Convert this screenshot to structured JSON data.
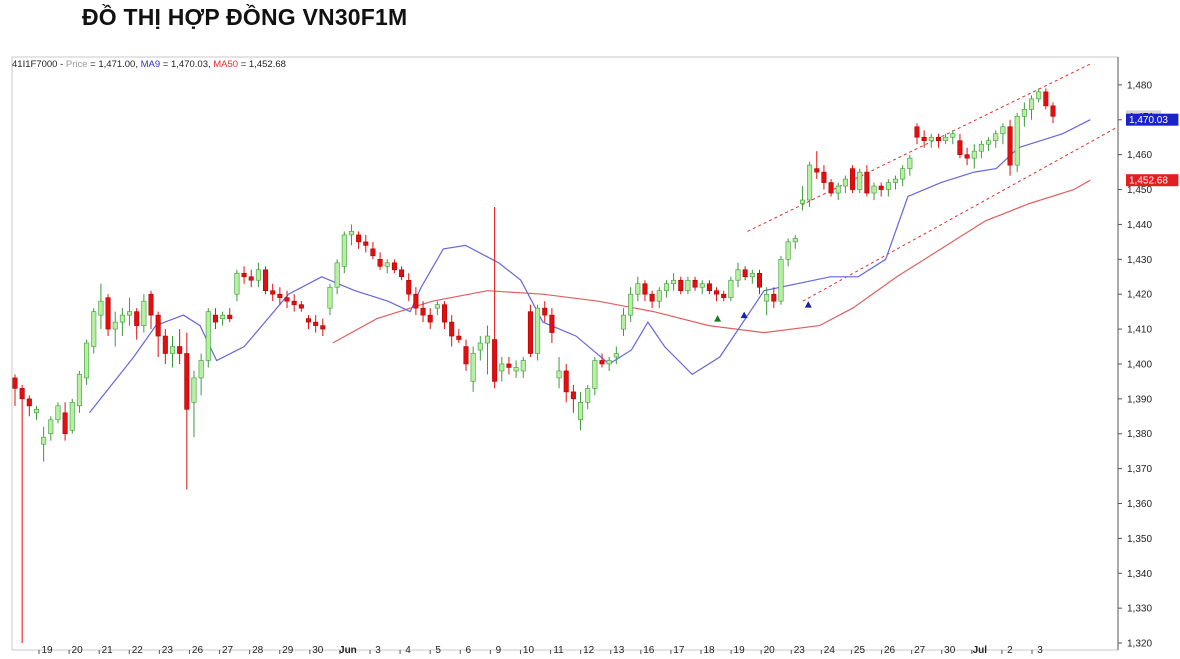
{
  "page": {
    "title": "ĐỒ THỊ HỢP ĐỒNG VN30F1M"
  },
  "chart_data": {
    "type": "candlestick",
    "title": "ĐỒ THỊ HỢP ĐỒNG VN30F1M",
    "legend": {
      "symbol": "41I1F7000",
      "items": [
        {
          "label": "Price",
          "value": "1,471.00",
          "color": "#9a9a9a"
        },
        {
          "label": "MA9",
          "value": "1,470.03",
          "color": "#3333cc"
        },
        {
          "label": "MA50",
          "value": "1,452.68",
          "color": "#e03030"
        }
      ]
    },
    "price_badges": [
      {
        "text": "1,471",
        "value": 1471,
        "bg": "#d8d8d8",
        "fg": "#000000"
      },
      {
        "text": "1,470.03",
        "value": 1470.03,
        "bg": "#1a22cc",
        "fg": "#ffffff"
      },
      {
        "text": "1,452.68",
        "value": 1452.68,
        "bg": "#e02020",
        "fg": "#ffffff"
      }
    ],
    "y_axis": {
      "min": 1318,
      "max": 1488,
      "ticks": [
        "1,320",
        "1,330",
        "1,340",
        "1,350",
        "1,360",
        "1,370",
        "1,380",
        "1,390",
        "1,400",
        "1,410",
        "1,420",
        "1,430",
        "1,440",
        "1,450",
        "1,460",
        "1,470",
        "1,480"
      ],
      "tick_values": [
        1320,
        1330,
        1340,
        1350,
        1360,
        1370,
        1380,
        1390,
        1400,
        1410,
        1420,
        1430,
        1440,
        1450,
        1460,
        1470,
        1480
      ]
    },
    "x_labels": [
      "19",
      "20",
      "21",
      "22",
      "23",
      "26",
      "27",
      "28",
      "29",
      "30",
      "Jun",
      "3",
      "4",
      "5",
      "6",
      "9",
      "10",
      "11",
      "12",
      "13",
      "16",
      "17",
      "18",
      "19",
      "20",
      "23",
      "24",
      "25",
      "26",
      "27",
      "30",
      "Jul",
      "2",
      "3"
    ],
    "grid": false,
    "colors": {
      "up": "#b6f0a0",
      "up_border": "#3c9a3c",
      "down": "#e01010",
      "down_border": "#b00000",
      "ma9": "#6666dd",
      "ma50": "#e06060",
      "channel": "#e03030"
    },
    "candles": [
      [
        1396,
        1397,
        1388,
        1393
      ],
      [
        1393,
        1394,
        1320,
        1390
      ],
      [
        1390,
        1391,
        1385,
        1388
      ],
      [
        1386,
        1388,
        1384,
        1387
      ],
      [
        1377,
        1382,
        1372,
        1379
      ],
      [
        1380,
        1385,
        1378,
        1384
      ],
      [
        1384,
        1389,
        1383,
        1388
      ],
      [
        1386,
        1389,
        1378,
        1380
      ],
      [
        1381,
        1390,
        1380,
        1389
      ],
      [
        1388,
        1398,
        1386,
        1397
      ],
      [
        1396,
        1407,
        1394,
        1406
      ],
      [
        1405,
        1416,
        1403,
        1415
      ],
      [
        1414,
        1423,
        1410,
        1418
      ],
      [
        1419,
        1420,
        1408,
        1410
      ],
      [
        1410,
        1415,
        1405,
        1412
      ],
      [
        1412,
        1416,
        1408,
        1414
      ],
      [
        1414,
        1419,
        1411,
        1415
      ],
      [
        1415,
        1416,
        1407,
        1411
      ],
      [
        1411,
        1420,
        1409,
        1418
      ],
      [
        1420,
        1421,
        1410,
        1414
      ],
      [
        1414,
        1415,
        1402,
        1408
      ],
      [
        1408,
        1410,
        1400,
        1403
      ],
      [
        1403,
        1408,
        1399,
        1405
      ],
      [
        1405,
        1410,
        1400,
        1403
      ],
      [
        1403,
        1409,
        1364,
        1387
      ],
      [
        1389,
        1398,
        1379,
        1396
      ],
      [
        1396,
        1403,
        1391,
        1401
      ],
      [
        1401,
        1416,
        1399,
        1415
      ],
      [
        1414,
        1416,
        1410,
        1412
      ],
      [
        1413,
        1415,
        1411,
        1414
      ],
      [
        1414,
        1416,
        1412,
        1413
      ],
      [
        1420,
        1427,
        1418,
        1426
      ],
      [
        1426,
        1428,
        1423,
        1425
      ],
      [
        1425,
        1427,
        1422,
        1424
      ],
      [
        1424,
        1429,
        1422,
        1427
      ],
      [
        1427,
        1428,
        1420,
        1421
      ],
      [
        1421,
        1423,
        1418,
        1420
      ],
      [
        1420,
        1422,
        1417,
        1419
      ],
      [
        1419,
        1421,
        1416,
        1418
      ],
      [
        1418,
        1420,
        1415,
        1417
      ],
      [
        1417,
        1418,
        1415,
        1416
      ],
      [
        1413,
        1414,
        1410,
        1412
      ],
      [
        1412,
        1414,
        1409,
        1411
      ],
      [
        1411,
        1413,
        1408,
        1410
      ],
      [
        1416,
        1423,
        1414,
        1422
      ],
      [
        1422,
        1430,
        1420,
        1429
      ],
      [
        1428,
        1438,
        1426,
        1437
      ],
      [
        1437,
        1440,
        1434,
        1438
      ],
      [
        1437,
        1438,
        1433,
        1435
      ],
      [
        1435,
        1437,
        1432,
        1434
      ],
      [
        1433,
        1435,
        1430,
        1431
      ],
      [
        1430,
        1432,
        1427,
        1428
      ],
      [
        1428,
        1430,
        1426,
        1429
      ],
      [
        1429,
        1430,
        1426,
        1427
      ],
      [
        1427,
        1428,
        1424,
        1425
      ],
      [
        1424,
        1426,
        1418,
        1420
      ],
      [
        1420,
        1422,
        1414,
        1416
      ],
      [
        1416,
        1418,
        1412,
        1414
      ],
      [
        1414,
        1416,
        1410,
        1412
      ],
      [
        1416,
        1418,
        1414,
        1417
      ],
      [
        1417,
        1418,
        1410,
        1412
      ],
      [
        1412,
        1414,
        1405,
        1408
      ],
      [
        1408,
        1410,
        1406,
        1407
      ],
      [
        1405,
        1407,
        1398,
        1400
      ],
      [
        1395,
        1405,
        1392,
        1403
      ],
      [
        1404,
        1408,
        1401,
        1406
      ],
      [
        1406,
        1411,
        1397,
        1408
      ],
      [
        1407,
        1445,
        1393,
        1395
      ],
      [
        1398,
        1402,
        1395,
        1400
      ],
      [
        1400,
        1402,
        1397,
        1399
      ],
      [
        1398,
        1401,
        1396,
        1399
      ],
      [
        1398,
        1402,
        1396,
        1401
      ],
      [
        1415,
        1417,
        1402,
        1403
      ],
      [
        1403,
        1417,
        1401,
        1416
      ],
      [
        1416,
        1418,
        1412,
        1414
      ],
      [
        1414,
        1416,
        1406,
        1409
      ],
      [
        1396,
        1402,
        1393,
        1398
      ],
      [
        1398,
        1400,
        1389,
        1392
      ],
      [
        1392,
        1394,
        1386,
        1390
      ],
      [
        1384,
        1392,
        1381,
        1389
      ],
      [
        1389,
        1394,
        1387,
        1393
      ],
      [
        1393,
        1402,
        1391,
        1401
      ],
      [
        1401,
        1403,
        1399,
        1400
      ],
      [
        1400,
        1402,
        1398,
        1401
      ],
      [
        1402,
        1405,
        1400,
        1403
      ],
      [
        1410,
        1416,
        1408,
        1414
      ],
      [
        1414,
        1422,
        1412,
        1420
      ],
      [
        1420,
        1425,
        1418,
        1423
      ],
      [
        1423,
        1424,
        1418,
        1420
      ],
      [
        1420,
        1421,
        1416,
        1418
      ],
      [
        1418,
        1422,
        1416,
        1421
      ],
      [
        1421,
        1424,
        1419,
        1423
      ],
      [
        1423,
        1426,
        1421,
        1424
      ],
      [
        1424,
        1425,
        1420,
        1421
      ],
      [
        1421,
        1425,
        1420,
        1424
      ],
      [
        1424,
        1425,
        1421,
        1422
      ],
      [
        1422,
        1424,
        1420,
        1423
      ],
      [
        1423,
        1424,
        1420,
        1421
      ],
      [
        1421,
        1422,
        1418,
        1420
      ],
      [
        1420,
        1421,
        1418,
        1419
      ],
      [
        1419,
        1425,
        1418,
        1424
      ],
      [
        1424,
        1429,
        1422,
        1427
      ],
      [
        1427,
        1428,
        1424,
        1425
      ],
      [
        1425,
        1427,
        1423,
        1426
      ],
      [
        1426,
        1427,
        1420,
        1422
      ],
      [
        1418,
        1422,
        1414,
        1420
      ],
      [
        1420,
        1422,
        1416,
        1418
      ],
      [
        1418,
        1431,
        1417,
        1430
      ],
      [
        1430,
        1436,
        1428,
        1435
      ],
      [
        1435,
        1437,
        1433,
        1436
      ],
      [
        1446,
        1451,
        1444,
        1447
      ],
      [
        1447,
        1458,
        1445,
        1457
      ],
      [
        1456,
        1461,
        1453,
        1455
      ],
      [
        1455,
        1457,
        1450,
        1452
      ],
      [
        1452,
        1453,
        1448,
        1449
      ],
      [
        1449,
        1452,
        1447,
        1451
      ],
      [
        1451,
        1454,
        1449,
        1453
      ],
      [
        1456,
        1457,
        1449,
        1450
      ],
      [
        1450,
        1456,
        1449,
        1455
      ],
      [
        1455,
        1457,
        1448,
        1449
      ],
      [
        1449,
        1452,
        1447,
        1451
      ],
      [
        1451,
        1452,
        1448,
        1450
      ],
      [
        1450,
        1453,
        1448,
        1452
      ],
      [
        1452,
        1454,
        1450,
        1453
      ],
      [
        1453,
        1457,
        1451,
        1456
      ],
      [
        1456,
        1460,
        1454,
        1459
      ],
      [
        1468,
        1469,
        1463,
        1465
      ],
      [
        1465,
        1467,
        1462,
        1464
      ],
      [
        1464,
        1466,
        1462,
        1465
      ],
      [
        1465,
        1466,
        1462,
        1464
      ],
      [
        1464,
        1466,
        1463,
        1465
      ],
      [
        1465,
        1467,
        1463,
        1466
      ],
      [
        1464,
        1466,
        1459,
        1460
      ],
      [
        1460,
        1462,
        1457,
        1459
      ],
      [
        1459,
        1463,
        1456,
        1461
      ],
      [
        1461,
        1464,
        1459,
        1463
      ],
      [
        1463,
        1465,
        1461,
        1464
      ],
      [
        1464,
        1467,
        1462,
        1466
      ],
      [
        1466,
        1469,
        1463,
        1468
      ],
      [
        1468,
        1470,
        1454,
        1457
      ],
      [
        1457,
        1472,
        1455,
        1471
      ],
      [
        1471,
        1475,
        1468,
        1473
      ],
      [
        1473,
        1477,
        1470,
        1476
      ],
      [
        1476,
        1479,
        1475,
        1478
      ],
      [
        1478,
        1479,
        1473,
        1474
      ],
      [
        1474,
        1475,
        1469,
        1471
      ]
    ],
    "ma9": [
      [
        0.07,
        1386
      ],
      [
        0.085,
        1392
      ],
      [
        0.11,
        1402
      ],
      [
        0.13,
        1411
      ],
      [
        0.155,
        1414
      ],
      [
        0.17,
        1411
      ],
      [
        0.185,
        1401
      ],
      [
        0.21,
        1405
      ],
      [
        0.25,
        1420
      ],
      [
        0.28,
        1425
      ],
      [
        0.31,
        1421
      ],
      [
        0.34,
        1418
      ],
      [
        0.36,
        1415
      ],
      [
        0.37,
        1422
      ],
      [
        0.39,
        1433
      ],
      [
        0.41,
        1434
      ],
      [
        0.44,
        1429
      ],
      [
        0.46,
        1424
      ],
      [
        0.48,
        1412
      ],
      [
        0.51,
        1408
      ],
      [
        0.54,
        1400
      ],
      [
        0.56,
        1404
      ],
      [
        0.575,
        1412
      ],
      [
        0.59,
        1405
      ],
      [
        0.615,
        1397
      ],
      [
        0.64,
        1402
      ],
      [
        0.68,
        1421
      ],
      [
        0.71,
        1423
      ],
      [
        0.74,
        1425
      ],
      [
        0.765,
        1425
      ],
      [
        0.79,
        1430
      ],
      [
        0.81,
        1448
      ],
      [
        0.84,
        1452
      ],
      [
        0.87,
        1455
      ],
      [
        0.89,
        1456
      ],
      [
        0.91,
        1462
      ],
      [
        0.93,
        1464
      ],
      [
        0.95,
        1466
      ],
      [
        0.975,
        1470.03
      ]
    ],
    "ma50": [
      [
        0.29,
        1406
      ],
      [
        0.33,
        1413
      ],
      [
        0.38,
        1418
      ],
      [
        0.43,
        1421
      ],
      [
        0.48,
        1420
      ],
      [
        0.53,
        1418
      ],
      [
        0.58,
        1415
      ],
      [
        0.63,
        1411
      ],
      [
        0.68,
        1409
      ],
      [
        0.73,
        1411
      ],
      [
        0.76,
        1416
      ],
      [
        0.8,
        1425
      ],
      [
        0.84,
        1433
      ],
      [
        0.88,
        1441
      ],
      [
        0.92,
        1446
      ],
      [
        0.96,
        1450
      ],
      [
        0.975,
        1452.68
      ]
    ],
    "channel": [
      {
        "from": [
          0.665,
          1438
        ],
        "to": [
          0.975,
          1486
        ]
      },
      {
        "from": [
          0.715,
          1418
        ],
        "to": [
          1.0,
          1468
        ]
      }
    ],
    "markers": [
      {
        "x": 0.638,
        "y": 1413,
        "color": "#1a7a1a"
      },
      {
        "x": 0.662,
        "y": 1414,
        "color": "#1a22aa"
      },
      {
        "x": 0.72,
        "y": 1417,
        "color": "#1a22aa"
      }
    ]
  }
}
